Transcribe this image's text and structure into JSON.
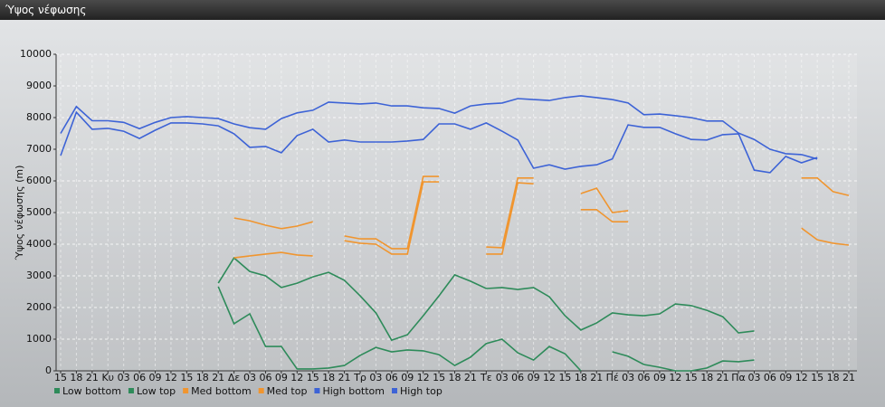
{
  "chart_data": {
    "type": "line",
    "title": "Ύψος νέφωσης",
    "ylabel": "Ύψος νέφωσης (m)",
    "categories": [
      "15",
      "18",
      "21",
      "Κυ",
      "03",
      "06",
      "09",
      "12",
      "15",
      "18",
      "21",
      "Δε",
      "03",
      "06",
      "09",
      "12",
      "15",
      "18",
      "21",
      "Τρ",
      "03",
      "06",
      "09",
      "12",
      "15",
      "18",
      "21",
      "Τε",
      "03",
      "06",
      "09",
      "12",
      "15",
      "18",
      "21",
      "Πέ",
      "03",
      "06",
      "09",
      "12",
      "15",
      "18",
      "21",
      "Πα",
      "03",
      "06",
      "09",
      "12",
      "15",
      "18",
      "21"
    ],
    "ylim": [
      0,
      10000
    ],
    "yticks": [
      0,
      1000,
      2000,
      3000,
      4000,
      5000,
      6000,
      7000,
      8000,
      9000,
      10000
    ],
    "grid": true,
    "legend": "bottom-left",
    "series": [
      {
        "name": "Low bottom",
        "color": "#2e8b5a",
        "values": [
          null,
          null,
          null,
          null,
          null,
          null,
          null,
          null,
          null,
          null,
          2660,
          1490,
          1800,
          770,
          770,
          60,
          60,
          90,
          170,
          490,
          740,
          600,
          660,
          630,
          510,
          170,
          430,
          860,
          1000,
          570,
          340,
          770,
          540,
          0,
          null,
          600,
          460,
          200,
          110,
          0,
          0,
          90,
          310,
          290,
          340,
          null,
          null,
          null,
          null,
          null,
          null
        ]
      },
      {
        "name": "Low top",
        "color": "#2e8b5a",
        "values": [
          null,
          null,
          null,
          null,
          null,
          null,
          null,
          null,
          null,
          null,
          2770,
          3570,
          3140,
          3000,
          2630,
          2770,
          2970,
          3110,
          2860,
          2370,
          1830,
          970,
          1140,
          1740,
          2370,
          3030,
          2830,
          2600,
          2630,
          2570,
          2630,
          2340,
          1740,
          1290,
          1510,
          1830,
          1770,
          1740,
          1800,
          2110,
          2060,
          1910,
          1710,
          1200,
          1260,
          null,
          null,
          null,
          null,
          null,
          null
        ]
      },
      {
        "name": "Med bottom",
        "color": "#f0952f",
        "values": [
          null,
          null,
          null,
          null,
          null,
          null,
          null,
          null,
          null,
          null,
          null,
          3570,
          3630,
          3690,
          3740,
          3660,
          3630,
          null,
          4110,
          4030,
          4000,
          3690,
          3690,
          5970,
          5970,
          null,
          null,
          3690,
          3690,
          5940,
          5910,
          null,
          null,
          5090,
          5090,
          4710,
          4710,
          null,
          null,
          null,
          null,
          null,
          null,
          null,
          null,
          null,
          null,
          4510,
          4140,
          4030,
          3970
        ]
      },
      {
        "name": "Med top",
        "color": "#f0952f",
        "values": [
          null,
          null,
          null,
          null,
          null,
          null,
          null,
          null,
          null,
          null,
          null,
          4830,
          4740,
          4600,
          4490,
          4570,
          4710,
          null,
          4260,
          4170,
          4170,
          3860,
          3860,
          6140,
          6140,
          null,
          null,
          3910,
          3890,
          6090,
          6090,
          null,
          null,
          5600,
          5770,
          5000,
          5060,
          null,
          null,
          null,
          null,
          null,
          null,
          null,
          null,
          null,
          null,
          6090,
          6090,
          5660,
          5540
        ]
      },
      {
        "name": "High bottom",
        "color": "#3d63d6",
        "values": [
          6800,
          8170,
          7630,
          7660,
          7570,
          7340,
          7600,
          7830,
          7830,
          7800,
          7740,
          7490,
          7060,
          7090,
          6890,
          7430,
          7630,
          7230,
          7290,
          7230,
          7230,
          7230,
          7260,
          7310,
          7800,
          7800,
          7630,
          7830,
          7570,
          7290,
          6400,
          6510,
          6370,
          6460,
          6510,
          6690,
          7770,
          7690,
          7690,
          7490,
          7310,
          7290,
          7460,
          7490,
          6340,
          6260,
          6770,
          6570,
          6740,
          null,
          null
        ]
      },
      {
        "name": "High top",
        "color": "#3d63d6",
        "values": [
          7500,
          8350,
          7900,
          7900,
          7850,
          7650,
          7850,
          8000,
          8030,
          8000,
          7970,
          7800,
          7680,
          7630,
          7970,
          8150,
          8230,
          8490,
          8460,
          8430,
          8460,
          8370,
          8370,
          8310,
          8290,
          8140,
          8370,
          8430,
          8460,
          8600,
          8570,
          8540,
          8630,
          8690,
          8630,
          8570,
          8460,
          8090,
          8110,
          8060,
          8000,
          7890,
          7890,
          7510,
          7310,
          7000,
          6860,
          6830,
          6690,
          null,
          null
        ]
      }
    ]
  }
}
